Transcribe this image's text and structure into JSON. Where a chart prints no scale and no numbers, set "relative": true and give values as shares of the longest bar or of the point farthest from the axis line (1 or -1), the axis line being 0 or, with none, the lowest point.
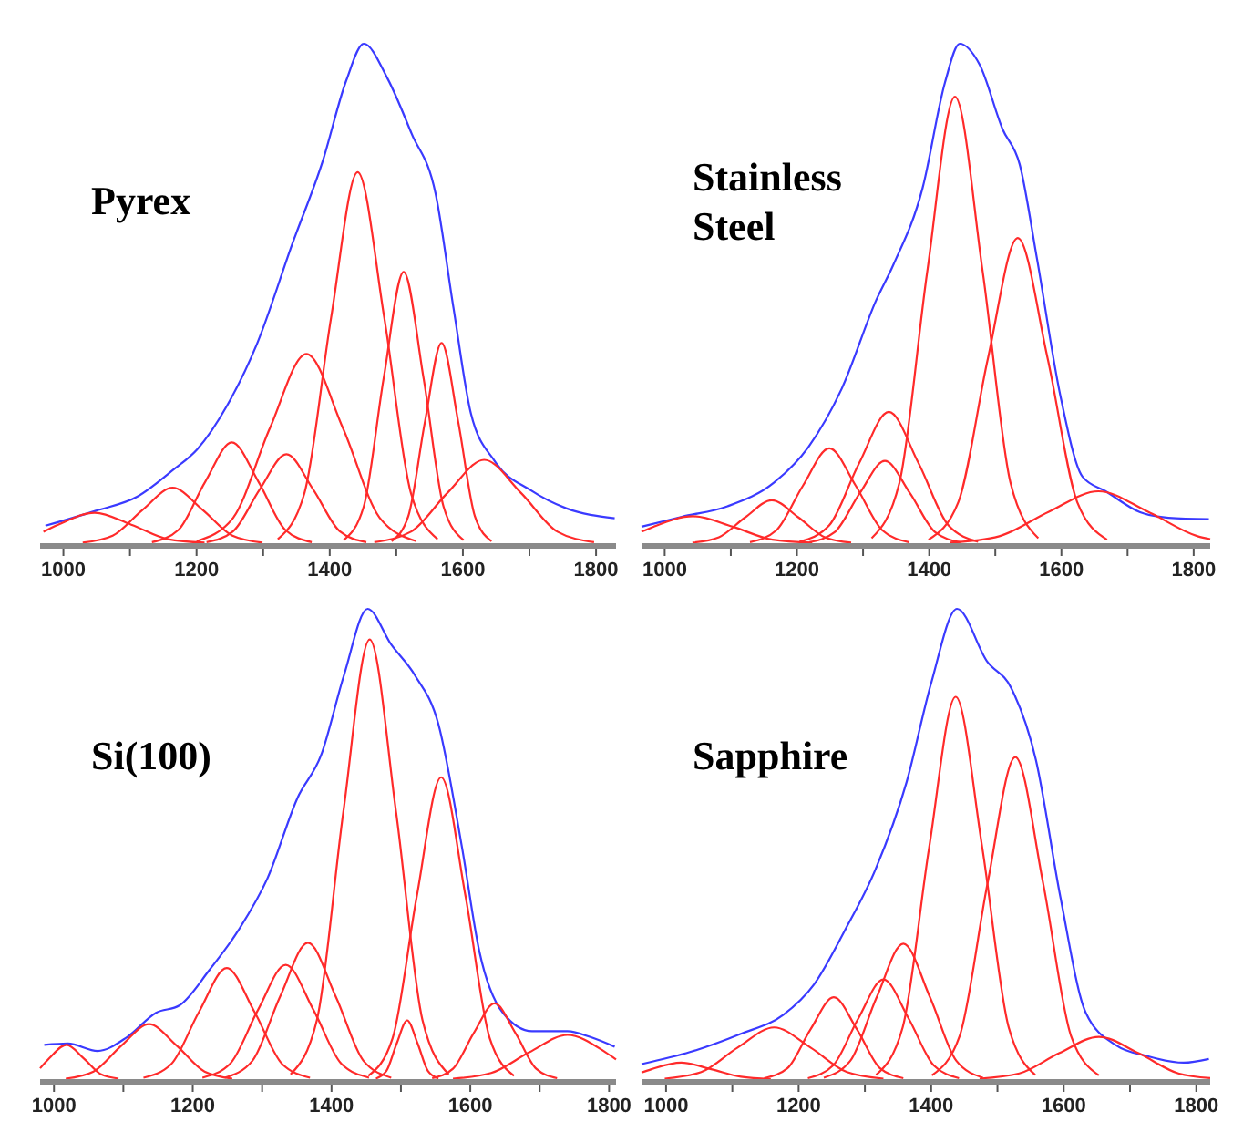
{
  "chart_data": [
    {
      "type": "line",
      "title": "Pyrex",
      "relative": true,
      "tick_labels": "x",
      "xlim": [
        965,
        1830
      ],
      "xticks": [
        1000,
        {
          "value": 1100,
          "label": null
        },
        1200,
        {
          "value": 1300,
          "label": null
        },
        1400,
        {
          "value": 1500,
          "label": null
        },
        1600,
        {
          "value": 1700,
          "label": null
        },
        1800
      ],
      "series": [
        {
          "color": "#3a3aff",
          "x": [
            973,
            1049,
            1112,
            1165,
            1201,
            1246,
            1291,
            1344,
            1389,
            1425,
            1451,
            1487,
            1523,
            1559,
            1586,
            1612,
            1648,
            1702,
            1755,
            1828
          ],
          "values": [
            0.035,
            0.065,
            0.094,
            0.147,
            0.188,
            0.276,
            0.4,
            0.6,
            0.763,
            0.927,
            1,
            0.93,
            0.82,
            0.7,
            0.47,
            0.26,
            0.164,
            0.106,
            0.07,
            0.05
          ]
        },
        {
          "color": "#ff2a2a",
          "x": [
            970,
            992,
            1047,
            1102,
            1157,
            1212
          ],
          "values": [
            0.023,
            0.037,
            0.061,
            0.037,
            0.008,
            0.001
          ]
        },
        {
          "color": "#ff2a2a",
          "x": [
            1029,
            1074,
            1119,
            1164,
            1209,
            1254,
            1299
          ],
          "values": [
            0.001,
            0.015,
            0.067,
            0.111,
            0.067,
            0.015,
            0.001
          ]
        },
        {
          "color": "#ff2a2a",
          "x": [
            1133,
            1173,
            1213,
            1253,
            1293,
            1333,
            1373
          ],
          "values": [
            0.002,
            0.027,
            0.123,
            0.202,
            0.123,
            0.027,
            0.002
          ]
        },
        {
          "color": "#ff2a2a",
          "x": [
            1215,
            1255,
            1295,
            1335,
            1375,
            1415,
            1455
          ],
          "values": [
            0.002,
            0.024,
            0.108,
            0.178,
            0.108,
            0.024,
            0.002
          ]
        },
        {
          "color": "#ff2a2a",
          "x": [
            1200,
            1255,
            1310,
            1365,
            1420,
            1475,
            1530
          ],
          "values": [
            0.004,
            0.051,
            0.23,
            0.379,
            0.23,
            0.051,
            0.004
          ]
        },
        {
          "color": "#ff2a2a",
          "x": [
            1322,
            1362,
            1402,
            1442,
            1482,
            1522,
            1562
          ],
          "values": [
            0.008,
            0.1,
            0.451,
            0.743,
            0.451,
            0.1,
            0.008
          ]
        },
        {
          "color": "#ff2a2a",
          "x": [
            1421,
            1451,
            1481,
            1511,
            1541,
            1571,
            1601
          ],
          "values": [
            0.006,
            0.073,
            0.33,
            0.543,
            0.33,
            0.073,
            0.006
          ]
        },
        {
          "color": "#ff2a2a",
          "x": [
            1493,
            1518,
            1543,
            1568,
            1593,
            1618,
            1643
          ],
          "values": [
            0.004,
            0.054,
            0.243,
            0.401,
            0.243,
            0.054,
            0.004
          ]
        },
        {
          "color": "#ff2a2a",
          "x": [
            1467,
            1522,
            1577,
            1632,
            1687,
            1742,
            1797
          ],
          "values": [
            0.002,
            0.023,
            0.101,
            0.167,
            0.101,
            0.023,
            0.002
          ]
        }
      ]
    },
    {
      "type": "line",
      "title": "Stainless Steel",
      "relative": true,
      "tick_labels": "x",
      "xlim": [
        965,
        1825
      ],
      "xticks": [
        1000,
        {
          "value": 1100,
          "label": null
        },
        1200,
        {
          "value": 1300,
          "label": null
        },
        1400,
        {
          "value": 1500,
          "label": null
        },
        1600,
        {
          "value": 1700,
          "label": null
        },
        1800
      ],
      "series": [
        {
          "color": "#3a3aff",
          "x": [
            965,
            1026,
            1095,
            1165,
            1217,
            1268,
            1320,
            1346,
            1390,
            1424,
            1446,
            1476,
            1511,
            1537,
            1563,
            1598,
            1632,
            1667,
            1719,
            1762,
            1823
          ],
          "values": [
            0.033,
            0.053,
            0.074,
            0.121,
            0.192,
            0.31,
            0.487,
            0.558,
            0.711,
            0.923,
            1,
            0.959,
            0.829,
            0.758,
            0.57,
            0.298,
            0.133,
            0.104,
            0.062,
            0.051,
            0.048
          ]
        },
        {
          "color": "#ff2a2a",
          "x": [
            965,
            983,
            1043,
            1103,
            1163,
            1223
          ],
          "values": [
            0.023,
            0.033,
            0.054,
            0.033,
            0.007,
            0.001
          ]
        },
        {
          "color": "#ff2a2a",
          "x": [
            1042,
            1082,
            1122,
            1162,
            1202,
            1242,
            1282
          ],
          "values": [
            0.001,
            0.012,
            0.052,
            0.086,
            0.052,
            0.012,
            0.001
          ]
        },
        {
          "color": "#ff2a2a",
          "x": [
            1129,
            1169,
            1209,
            1249,
            1289,
            1329,
            1369
          ],
          "values": [
            0.002,
            0.026,
            0.115,
            0.19,
            0.115,
            0.026,
            0.002
          ]
        },
        {
          "color": "#ff2a2a",
          "x": [
            1219,
            1257,
            1295,
            1333,
            1371,
            1409,
            1447
          ],
          "values": [
            0.002,
            0.022,
            0.1,
            0.165,
            0.1,
            0.022,
            0.002
          ]
        },
        {
          "color": "#ff2a2a",
          "x": [
            1204,
            1249,
            1294,
            1339,
            1384,
            1429,
            1474
          ],
          "values": [
            0.003,
            0.036,
            0.16,
            0.263,
            0.16,
            0.036,
            0.003
          ]
        },
        {
          "color": "#ff2a2a",
          "x": [
            1313,
            1355,
            1397,
            1439,
            1481,
            1523,
            1565
          ],
          "values": [
            0.01,
            0.121,
            0.543,
            0.894,
            0.543,
            0.121,
            0.01
          ]
        },
        {
          "color": "#ff2a2a",
          "x": [
            1399,
            1444,
            1489,
            1534,
            1579,
            1624,
            1669
          ],
          "values": [
            0.007,
            0.082,
            0.371,
            0.611,
            0.371,
            0.082,
            0.007
          ]
        },
        {
          "color": "#ff2a2a",
          "x": [
            1431,
            1506,
            1581,
            1656,
            1731,
            1806,
            1825
          ],
          "values": [
            0.001,
            0.014,
            0.063,
            0.104,
            0.063,
            0.014,
            0.008
          ]
        }
      ]
    },
    {
      "type": "line",
      "title": "Si(100)",
      "relative": true,
      "tick_labels": "x",
      "xlim": [
        980,
        1810
      ],
      "xticks": [
        1000,
        {
          "value": 1100,
          "label": null
        },
        1200,
        {
          "value": 1300,
          "label": null
        },
        1400,
        {
          "value": 1500,
          "label": null
        },
        1600,
        {
          "value": 1700,
          "label": null
        },
        1800
      ],
      "series": [
        {
          "color": "#3a3aff",
          "x": [
            986,
            1020,
            1063,
            1105,
            1147,
            1181,
            1224,
            1266,
            1308,
            1351,
            1385,
            1418,
            1452,
            1486,
            1520,
            1554,
            1588,
            1613,
            1647,
            1689,
            1740,
            1774,
            1808
          ],
          "values": [
            0.073,
            0.076,
            0.06,
            0.089,
            0.141,
            0.157,
            0.232,
            0.317,
            0.428,
            0.598,
            0.689,
            0.859,
            1,
            0.924,
            0.859,
            0.755,
            0.493,
            0.272,
            0.141,
            0.102,
            0.102,
            0.089,
            0.069
          ]
        },
        {
          "color": "#ff2a2a",
          "x": [
            980,
            993,
            1018,
            1043,
            1068,
            1093
          ],
          "values": [
            0.023,
            0.044,
            0.073,
            0.044,
            0.01,
            0.001
          ]
        },
        {
          "color": "#ff2a2a",
          "x": [
            1017,
            1057,
            1097,
            1137,
            1177,
            1217,
            1257
          ],
          "values": [
            0.001,
            0.016,
            0.071,
            0.117,
            0.071,
            0.016,
            0.001
          ]
        },
        {
          "color": "#ff2a2a",
          "x": [
            1129,
            1169,
            1209,
            1249,
            1289,
            1329,
            1369
          ],
          "values": [
            0.003,
            0.032,
            0.143,
            0.236,
            0.143,
            0.032,
            0.003
          ]
        },
        {
          "color": "#ff2a2a",
          "x": [
            1214,
            1254,
            1294,
            1334,
            1374,
            1414,
            1454
          ],
          "values": [
            0.003,
            0.033,
            0.147,
            0.243,
            0.147,
            0.033,
            0.003
          ]
        },
        {
          "color": "#ff2a2a",
          "x": [
            1246,
            1286,
            1326,
            1366,
            1406,
            1446,
            1486
          ],
          "values": [
            0.003,
            0.039,
            0.176,
            0.29,
            0.176,
            0.039,
            0.003
          ]
        },
        {
          "color": "#ff2a2a",
          "x": [
            1341,
            1379,
            1417,
            1455,
            1493,
            1531,
            1569
          ],
          "values": [
            0.01,
            0.126,
            0.568,
            0.935,
            0.568,
            0.126,
            0.01
          ]
        },
        {
          "color": "#ff2a2a",
          "x": [
            1464,
            1479,
            1494,
            1509,
            1524,
            1539,
            1554
          ],
          "values": [
            0.001,
            0.017,
            0.076,
            0.125,
            0.076,
            0.017,
            0.001
          ]
        },
        {
          "color": "#ff2a2a",
          "x": [
            1453,
            1488,
            1523,
            1558,
            1593,
            1628,
            1663
          ],
          "values": [
            0.007,
            0.087,
            0.39,
            0.642,
            0.39,
            0.087,
            0.007
          ]
        },
        {
          "color": "#ff2a2a",
          "x": [
            1545,
            1575,
            1605,
            1635,
            1665,
            1695,
            1725
          ],
          "values": [
            0.002,
            0.022,
            0.098,
            0.161,
            0.098,
            0.022,
            0.002
          ]
        },
        {
          "color": "#ff2a2a",
          "x": [
            1575,
            1630,
            1685,
            1740,
            1795,
            1810
          ],
          "values": [
            0.001,
            0.013,
            0.057,
            0.094,
            0.057,
            0.042
          ]
        }
      ]
    },
    {
      "type": "line",
      "title": "Sapphire",
      "relative": true,
      "tick_labels": "x",
      "xlim": [
        963,
        1821
      ],
      "xticks": [
        1000,
        {
          "value": 1100,
          "label": null
        },
        1200,
        {
          "value": 1300,
          "label": null
        },
        1400,
        {
          "value": 1500,
          "label": null
        },
        1600,
        {
          "value": 1700,
          "label": null
        },
        1800
      ],
      "series": [
        {
          "color": "#3a3aff",
          "x": [
            963,
            1037,
            1112,
            1177,
            1223,
            1270,
            1316,
            1363,
            1400,
            1439,
            1484,
            1521,
            1558,
            1595,
            1633,
            1679,
            1726,
            1781,
            1819
          ],
          "values": [
            0.032,
            0.058,
            0.096,
            0.137,
            0.201,
            0.317,
            0.446,
            0.632,
            0.842,
            1,
            0.889,
            0.831,
            0.679,
            0.387,
            0.142,
            0.072,
            0.049,
            0.035,
            0.043
          ]
        },
        {
          "color": "#ff2a2a",
          "x": [
            963,
            978,
            1023,
            1068,
            1113,
            1158
          ],
          "values": [
            0.014,
            0.021,
            0.035,
            0.021,
            0.005,
            0
          ]
        },
        {
          "color": "#ff2a2a",
          "x": [
            998,
            1053,
            1108,
            1163,
            1218,
            1273,
            1328
          ],
          "values": [
            0.001,
            0.015,
            0.067,
            0.11,
            0.067,
            0.015,
            0.001
          ]
        },
        {
          "color": "#ff2a2a",
          "x": [
            1148,
            1183,
            1218,
            1253,
            1288,
            1323,
            1358
          ],
          "values": [
            0.002,
            0.023,
            0.106,
            0.174,
            0.106,
            0.023,
            0.002
          ]
        },
        {
          "color": "#ff2a2a",
          "x": [
            1214,
            1252,
            1290,
            1328,
            1366,
            1404,
            1442
          ],
          "values": [
            0.002,
            0.029,
            0.129,
            0.212,
            0.129,
            0.029,
            0.002
          ]
        },
        {
          "color": "#ff2a2a",
          "x": [
            1238,
            1278,
            1318,
            1358,
            1398,
            1438,
            1478
          ],
          "values": [
            0.003,
            0.039,
            0.175,
            0.288,
            0.175,
            0.039,
            0.003
          ]
        },
        {
          "color": "#ff2a2a",
          "x": [
            1317,
            1357,
            1397,
            1437,
            1477,
            1517,
            1557
          ],
          "values": [
            0.009,
            0.11,
            0.493,
            0.813,
            0.493,
            0.11,
            0.009
          ]
        },
        {
          "color": "#ff2a2a",
          "x": [
            1401,
            1443,
            1485,
            1527,
            1569,
            1611,
            1653
          ],
          "values": [
            0.008,
            0.092,
            0.416,
            0.685,
            0.416,
            0.092,
            0.008
          ]
        },
        {
          "color": "#ff2a2a",
          "x": [
            1473,
            1533,
            1593,
            1653,
            1713,
            1773,
            1821
          ],
          "values": [
            0.001,
            0.012,
            0.055,
            0.09,
            0.055,
            0.012,
            0.002
          ]
        }
      ]
    }
  ]
}
